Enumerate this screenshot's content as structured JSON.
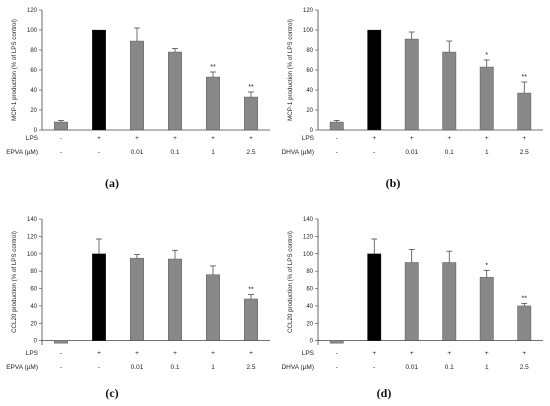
{
  "colors": {
    "control": "#888888",
    "lps": "#000000",
    "treated": "#888888",
    "axis": "#444444"
  },
  "chart_data": [
    {
      "panel": "(a)",
      "type": "bar",
      "ylabel": "MCP-1 production (% of LPS control)",
      "ylim": [
        0,
        120
      ],
      "yticks": [
        0,
        20,
        40,
        60,
        80,
        100,
        120
      ],
      "row_labels": [
        "LPS",
        "EPVA (µM)"
      ],
      "lps_row": [
        "-",
        "+",
        "+",
        "+",
        "+",
        "+"
      ],
      "dose_row": [
        "-",
        "-",
        "0.01",
        "0.1",
        "1",
        "2.5"
      ],
      "values": [
        8,
        100,
        89,
        78,
        53,
        33
      ],
      "errors": [
        1.5,
        0,
        13,
        3.5,
        5,
        5
      ],
      "significance": [
        "",
        "",
        "",
        "",
        "**",
        "**"
      ],
      "bar_kind": [
        "control",
        "lps",
        "treated",
        "treated",
        "treated",
        "treated"
      ]
    },
    {
      "panel": "(b)",
      "type": "bar",
      "ylabel": "MCP-1 production (% of LPS control)",
      "ylim": [
        0,
        120
      ],
      "yticks": [
        0,
        20,
        40,
        60,
        80,
        100,
        120
      ],
      "row_labels": [
        "LPS",
        "DHVA (µM)"
      ],
      "lps_row": [
        "-",
        "+",
        "+",
        "+",
        "+",
        "+"
      ],
      "dose_row": [
        "-",
        "-",
        "0.01",
        "0.1",
        "1",
        "2.5"
      ],
      "values": [
        8,
        100,
        91,
        78,
        63,
        37
      ],
      "errors": [
        1.5,
        0,
        7,
        11,
        7,
        11
      ],
      "significance": [
        "",
        "",
        "",
        "",
        "*",
        "**"
      ],
      "bar_kind": [
        "control",
        "lps",
        "treated",
        "treated",
        "treated",
        "treated"
      ]
    },
    {
      "panel": "(c)",
      "type": "bar",
      "ylabel": "CCL20 production (% of LPS control)",
      "ylim": [
        -5,
        140
      ],
      "yticks": [
        0,
        20,
        40,
        60,
        80,
        100,
        120,
        140
      ],
      "row_labels": [
        "LPS",
        "EPVA (µM)"
      ],
      "lps_row": [
        "-",
        "+",
        "+",
        "+",
        "+",
        "+"
      ],
      "dose_row": [
        "-",
        "-",
        "0.01",
        "0.1",
        "1",
        "2.5"
      ],
      "values": [
        -3,
        100,
        95,
        94,
        76,
        48
      ],
      "errors": [
        1,
        17,
        4,
        10,
        10,
        5
      ],
      "significance": [
        "",
        "",
        "",
        "",
        "",
        "**"
      ],
      "bar_kind": [
        "control",
        "lps",
        "treated",
        "treated",
        "treated",
        "treated"
      ]
    },
    {
      "panel": "(d)",
      "type": "bar",
      "ylabel": "CCL20 production (% of LPS control)",
      "ylim": [
        -5,
        140
      ],
      "yticks": [
        0,
        20,
        40,
        60,
        80,
        100,
        120,
        140
      ],
      "row_labels": [
        "LPS",
        "DHVA (µM)"
      ],
      "lps_row": [
        "-",
        "+",
        "+",
        "+",
        "+",
        "+"
      ],
      "dose_row": [
        "-",
        "-",
        "0.01",
        "0.1",
        "1",
        "2.5"
      ],
      "values": [
        -3,
        100,
        90,
        90,
        73,
        40
      ],
      "errors": [
        1,
        17,
        15,
        13,
        8,
        3
      ],
      "significance": [
        "",
        "",
        "",
        "",
        "*",
        "**"
      ],
      "bar_kind": [
        "control",
        "lps",
        "treated",
        "treated",
        "treated",
        "treated"
      ]
    }
  ]
}
